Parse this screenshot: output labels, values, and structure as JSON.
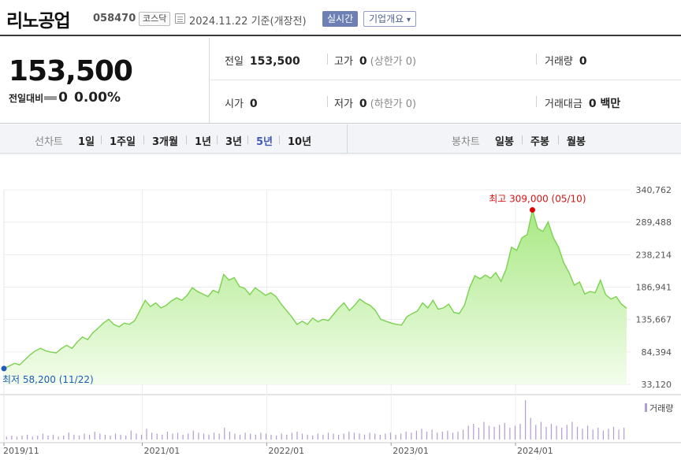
{
  "header": {
    "name": "리노공업",
    "code": "058470",
    "market": "코스닥",
    "date": "2024.11.22",
    "basis": "기준(개장전)",
    "realtime_btn": "실시간",
    "corp_btn": "기업개요",
    "corp_caret": "▾"
  },
  "summary": {
    "price": "153,500",
    "change_label": "전일대비",
    "change_value": "0",
    "change_pct": "0.00%",
    "prev_close_label": "전일",
    "prev_close": "153,500",
    "high_label": "고가",
    "high": "0",
    "upper_limit": "(상한가 0)",
    "volume_label": "거래량",
    "volume": "0",
    "open_label": "시가",
    "open": "0",
    "low_label": "저가",
    "low": "0",
    "lower_limit": "(하한가 0)",
    "amount_label": "거래대금",
    "amount": "0 백만"
  },
  "periods": {
    "line_label": "선차트",
    "line_options": [
      "1일",
      "1주일",
      "3개월",
      "1년",
      "3년",
      "5년",
      "10년"
    ],
    "active": "5년",
    "candle_label": "봉차트",
    "candle_options": [
      "일봉",
      "주봉",
      "월봉"
    ]
  },
  "colors": {
    "line": "#7bd24f",
    "area_top": "#a8e883",
    "area_bottom": "#f3fdec",
    "high_marker": "#e00000",
    "low_marker": "#1e5bb5",
    "volume_bar": "#b39bd3"
  },
  "chart_data": {
    "type": "area",
    "x_start": "2019/11/22",
    "x_end": "2024/11/22",
    "x_ticks": [
      "2019/11",
      "2021/01",
      "2022/01",
      "2023/01",
      "2024/01"
    ],
    "y_ticks": [
      "340,762",
      "289,488",
      "238,214",
      "186,941",
      "135,667",
      "84,394",
      "33,120"
    ],
    "ylim": [
      33120,
      340762
    ],
    "high_label": "최고 309,000 (05/10)",
    "low_label": "최저 58,200 (11/22)",
    "volume_label": "거래량",
    "series": [
      {
        "values": [
          58200,
          62000,
          66500,
          64000,
          72000,
          80000,
          86000,
          90000,
          86000,
          84000,
          83000,
          90000,
          95000,
          90000,
          100000,
          108000,
          104000,
          115000,
          122000,
          130000,
          136000,
          128000,
          124000,
          130000,
          128000,
          134000,
          150000,
          166000,
          156000,
          162000,
          154000,
          158000,
          165000,
          170000,
          166000,
          174000,
          186000,
          180000,
          176000,
          172000,
          182000,
          178000,
          207000,
          198000,
          202000,
          188000,
          185000,
          175000,
          186000,
          180000,
          174000,
          178000,
          172000,
          160000,
          150000,
          140000,
          128000,
          133000,
          128000,
          138000,
          132000,
          136000,
          134000,
          144000,
          154000,
          162000,
          150000,
          158000,
          168000,
          162000,
          158000,
          150000,
          136000,
          133000,
          130000,
          128000,
          127000,
          140000,
          145000,
          149000,
          162000,
          154000,
          166000,
          152000,
          154000,
          160000,
          147000,
          145000,
          158000,
          186000,
          205000,
          200000,
          206000,
          201000,
          210000,
          196000,
          216000,
          250000,
          245000,
          265000,
          270000,
          309000,
          280000,
          275000,
          290000,
          265000,
          250000,
          225000,
          210000,
          190000,
          195000,
          176000,
          180000,
          178000,
          198000,
          175000,
          168000,
          172000,
          160000,
          153500
        ]
      }
    ],
    "volume": [
      3,
      4,
      3,
      4,
      5,
      3,
      4,
      6,
      4,
      5,
      3,
      4,
      7,
      5,
      4,
      6,
      5,
      8,
      6,
      5,
      4,
      6,
      5,
      4,
      9,
      6,
      5,
      11,
      7,
      6,
      5,
      8,
      6,
      7,
      5,
      6,
      9,
      7,
      6,
      5,
      7,
      6,
      12,
      8,
      6,
      5,
      7,
      6,
      5,
      7,
      6,
      5,
      4,
      6,
      5,
      7,
      8,
      6,
      5,
      4,
      6,
      5,
      7,
      6,
      5,
      6,
      8,
      7,
      6,
      5,
      7,
      6,
      5,
      6,
      7,
      5,
      6,
      8,
      7,
      9,
      11,
      8,
      10,
      7,
      8,
      9,
      7,
      8,
      10,
      14,
      16,
      12,
      18,
      14,
      13,
      15,
      17,
      12,
      14,
      16,
      40,
      22,
      15,
      18,
      13,
      16,
      14,
      12,
      15,
      18,
      13,
      11,
      14,
      10,
      12,
      9,
      11,
      13,
      10,
      12
    ]
  }
}
